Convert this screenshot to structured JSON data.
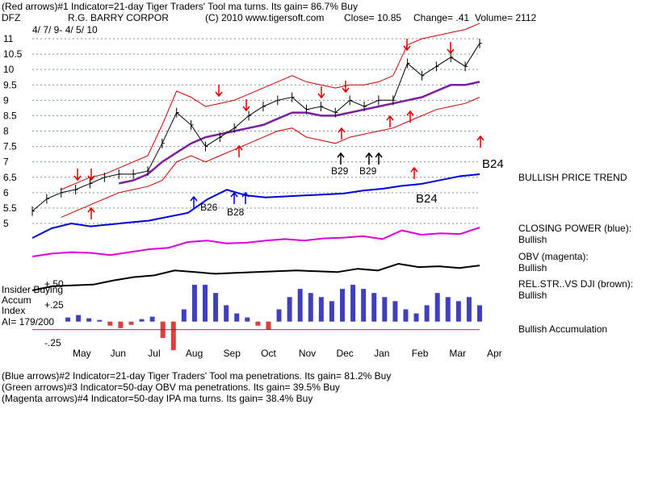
{
  "header": {
    "line1": "(Red arrows)#1 Indicator=21-day Tiger Traders' Tool ma turns. Its gain= 86.7% Buy",
    "ticker": "DFZ",
    "company": "R.G. BARRY CORPOR",
    "copyright": "(C) 2010 www.tigersoft.com",
    "close": "Close=  10.85",
    "change": "Change= .41",
    "volume": "Volume= 2112",
    "range": "4/ 7/ 9- 4/ 5/ 10"
  },
  "footer": {
    "blue": "(Blue arrows)#2 Indicator=21-day Tiger Traders' Tool ma penetrations. Its gain= 81.2% Buy",
    "green": "(Green arrows)#3 Indicator=50-day OBV ma penetrations. Its gain= 39.5% Buy",
    "magenta": "(Magenta arrows)#4 Indicator=50-day IPA ma turns. Its gain= 38.4% Buy"
  },
  "right_labels": {
    "b24": "B24",
    "trend": "BULLISH PRICE TREND",
    "cp_title": "CLOSING POWER (blue):",
    "cp_val": "Bullish",
    "obv_title": "OBV (magenta):",
    "obv_val": "Bullish",
    "rs_title": "REL.STR..VS DJI (brown):",
    "rs_val": "Bullish",
    "accum": "Bullish Accumulation"
  },
  "accum_panel": {
    "title1": "Insider Buying",
    "title2": "Accum",
    "title3": "Index",
    "ai": "AI= 179/200",
    "tick_hi": "+.50",
    "tick_mid": "+.25",
    "tick_lo": "-.25"
  },
  "annotations": [
    {
      "id": "b26",
      "text": "B26"
    },
    {
      "id": "b28",
      "text": "B28"
    },
    {
      "id": "b29a",
      "text": "B29"
    },
    {
      "id": "b29b",
      "text": "B29"
    },
    {
      "id": "b24b",
      "text": "B24"
    }
  ],
  "colors": {
    "price": "#000000",
    "bands": "#cc0000",
    "ma": "#7a1fa0",
    "closing_power": "#0000dd",
    "obv": "#dd00dd",
    "rel_strength": "#000000",
    "accum": "#0000aa",
    "distrib": "#cc0000"
  },
  "chart_data": {
    "type": "line",
    "title": "R.G. BARRY CORPOR",
    "y_ticks": [
      11,
      10.5,
      10,
      9.5,
      9,
      8.5,
      8,
      7.5,
      7,
      6.5,
      6,
      5.5,
      5
    ],
    "y_tick_labels": [
      "11",
      "10.5",
      "10",
      "9.5",
      "9",
      "8.5",
      "8",
      "7.5",
      "7",
      "6.5",
      "6",
      "5.5",
      "5"
    ],
    "ylim": [
      5,
      11
    ],
    "x_months": [
      "May",
      "Jun",
      "Jul",
      "Aug",
      "Sep",
      "Oct",
      "Nov",
      "Dec",
      "Jan",
      "Feb",
      "Mar",
      "Apr"
    ],
    "price_series": {
      "name": "Close",
      "values": [
        5.4,
        5.8,
        6.0,
        6.1,
        6.3,
        6.5,
        6.6,
        6.6,
        6.7,
        7.6,
        8.6,
        8.2,
        7.5,
        7.8,
        8.1,
        8.5,
        8.8,
        9.0,
        9.1,
        8.7,
        8.8,
        8.6,
        9.0,
        8.8,
        9.0,
        9.0,
        10.2,
        9.8,
        10.1,
        10.4,
        10.1,
        10.85
      ]
    },
    "ma_series": {
      "name": "21-day ma",
      "values": [
        null,
        null,
        null,
        null,
        null,
        null,
        6.3,
        6.4,
        6.6,
        7.0,
        7.3,
        7.6,
        7.8,
        7.9,
        8.0,
        8.1,
        8.2,
        8.4,
        8.6,
        8.6,
        8.5,
        8.5,
        8.6,
        8.7,
        8.8,
        8.9,
        9.0,
        9.1,
        9.3,
        9.5,
        9.5,
        9.6
      ]
    },
    "upper_band": [
      null,
      null,
      6.1,
      6.3,
      6.5,
      6.6,
      6.8,
      7.0,
      7.2,
      8.2,
      9.3,
      9.1,
      8.8,
      8.9,
      9.0,
      9.2,
      9.4,
      9.6,
      9.8,
      9.6,
      9.5,
      9.4,
      9.5,
      9.5,
      9.6,
      9.8,
      10.8,
      11.0,
      11.1,
      11.2,
      11.3,
      11.5
    ],
    "lower_band": [
      null,
      null,
      5.2,
      5.4,
      5.6,
      5.8,
      6.0,
      6.1,
      6.2,
      6.4,
      7.0,
      7.2,
      7.0,
      7.2,
      7.4,
      7.6,
      7.8,
      8.0,
      8.1,
      7.8,
      7.7,
      7.6,
      7.8,
      7.9,
      8.0,
      8.1,
      8.3,
      8.5,
      8.7,
      8.8,
      8.9,
      9.1
    ],
    "accum_ylim": [
      -0.25,
      0.5
    ],
    "accum_values": [
      0.05,
      0.08,
      0.04,
      0.02,
      -0.05,
      -0.08,
      -0.04,
      0.03,
      0.06,
      -0.2,
      -0.35,
      0.15,
      0.45,
      0.45,
      0.35,
      0.2,
      0.1,
      0.05,
      -0.05,
      -0.1,
      0.15,
      0.3,
      0.4,
      0.35,
      0.3,
      0.25,
      0.4,
      0.45,
      0.4,
      0.35,
      0.3,
      0.25,
      0.15,
      0.1,
      0.2,
      0.35,
      0.3,
      0.25,
      0.3,
      0.2
    ]
  }
}
